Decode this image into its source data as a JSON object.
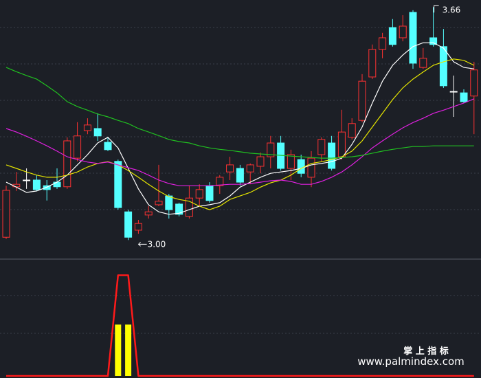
{
  "chart_data": [
    {
      "type": "candlestick",
      "categories": [
        null,
        null,
        null,
        null,
        null,
        null,
        null,
        null,
        null,
        null,
        null,
        null,
        null,
        null,
        null,
        null,
        null,
        null,
        null,
        null,
        null,
        null,
        null,
        null,
        null,
        null,
        null,
        null,
        null,
        null,
        null,
        null,
        null,
        null,
        null,
        null,
        null,
        null,
        null,
        null,
        null,
        null,
        null,
        null,
        null,
        null,
        null
      ],
      "open": [
        3.008,
        3.151,
        3.17,
        3.17,
        3.154,
        3.164,
        3.151,
        3.232,
        3.31,
        3.316,
        3.277,
        3.223,
        3.08,
        3.028,
        3.071,
        3.1,
        3.125,
        3.102,
        3.067,
        3.119,
        3.154,
        3.154,
        3.193,
        3.203,
        3.193,
        3.209,
        3.236,
        3.275,
        3.203,
        3.228,
        3.178,
        3.242,
        3.275,
        3.236,
        3.291,
        3.339,
        3.462,
        3.54,
        3.602,
        3.573,
        3.645,
        3.489,
        3.573,
        3.548,
        3.421,
        3.417,
        3.408
      ],
      "high": [
        3.154,
        3.193,
        3.203,
        3.184,
        3.17,
        3.203,
        3.291,
        3.334,
        3.345,
        3.359,
        3.291,
        3.228,
        3.086,
        3.057,
        3.096,
        3.213,
        3.131,
        3.106,
        3.154,
        3.158,
        3.164,
        3.184,
        3.236,
        3.213,
        3.217,
        3.248,
        3.295,
        3.295,
        3.256,
        3.242,
        3.252,
        3.291,
        3.295,
        3.369,
        3.345,
        3.47,
        3.554,
        3.587,
        3.626,
        3.637,
        3.651,
        3.544,
        3.66,
        3.598,
        3.466,
        3.427,
        3.505
      ],
      "low": [
        3.003,
        3.139,
        3.145,
        3.139,
        3.112,
        3.145,
        3.145,
        3.223,
        3.3,
        3.281,
        3.252,
        3.086,
        3.0,
        3.018,
        3.061,
        3.096,
        3.061,
        3.067,
        3.061,
        3.096,
        3.106,
        3.131,
        3.17,
        3.154,
        3.158,
        3.189,
        3.203,
        3.197,
        3.17,
        3.178,
        3.15,
        3.223,
        3.197,
        3.228,
        3.285,
        3.334,
        3.456,
        3.515,
        3.548,
        3.563,
        3.485,
        3.485,
        3.548,
        3.431,
        3.349,
        3.388,
        3.3
      ],
      "close": [
        3.141,
        3.158,
        3.17,
        3.143,
        3.143,
        3.151,
        3.281,
        3.295,
        3.326,
        3.295,
        3.256,
        3.092,
        3.008,
        3.047,
        3.08,
        3.11,
        3.086,
        3.073,
        3.119,
        3.143,
        3.112,
        3.178,
        3.213,
        3.164,
        3.213,
        3.236,
        3.275,
        3.203,
        3.242,
        3.189,
        3.232,
        3.285,
        3.203,
        3.306,
        3.33,
        3.45,
        3.54,
        3.573,
        3.554,
        3.606,
        3.501,
        3.515,
        3.554,
        3.437,
        3.421,
        3.392,
        3.482
      ],
      "up_color": "#ff3232",
      "down_color": "#54ffff",
      "doji_color": "#ffffff",
      "series": [
        {
          "color": "#ffffff",
          "values": [
            3.164,
            3.15,
            3.135,
            3.139,
            3.15,
            3.164,
            3.184,
            3.213,
            3.242,
            3.275,
            3.291,
            3.261,
            3.203,
            3.145,
            3.1,
            3.08,
            3.073,
            3.076,
            3.086,
            3.096,
            3.1,
            3.106,
            3.125,
            3.15,
            3.164,
            3.178,
            3.189,
            3.193,
            3.197,
            3.203,
            3.213,
            3.217,
            3.222,
            3.232,
            3.271,
            3.32,
            3.388,
            3.45,
            3.495,
            3.524,
            3.548,
            3.559,
            3.559,
            3.544,
            3.505,
            3.489,
            3.485
          ]
        },
        {
          "color": "#e6e600",
          "values": [
            3.213,
            3.203,
            3.193,
            3.184,
            3.178,
            3.178,
            3.184,
            3.193,
            3.207,
            3.217,
            3.222,
            3.213,
            3.197,
            3.178,
            3.158,
            3.139,
            3.123,
            3.115,
            3.11,
            3.096,
            3.086,
            3.096,
            3.115,
            3.125,
            3.135,
            3.15,
            3.162,
            3.17,
            3.184,
            3.203,
            3.217,
            3.222,
            3.228,
            3.236,
            3.252,
            3.281,
            3.32,
            3.359,
            3.398,
            3.431,
            3.456,
            3.476,
            3.495,
            3.505,
            3.513,
            3.509,
            3.495
          ]
        },
        {
          "color": "#e020e0",
          "values": [
            3.316,
            3.306,
            3.294,
            3.281,
            3.267,
            3.252,
            3.236,
            3.228,
            3.221,
            3.217,
            3.221,
            3.213,
            3.205,
            3.197,
            3.184,
            3.17,
            3.16,
            3.154,
            3.154,
            3.154,
            3.154,
            3.156,
            3.158,
            3.158,
            3.16,
            3.164,
            3.168,
            3.17,
            3.166,
            3.158,
            3.158,
            3.166,
            3.178,
            3.193,
            3.213,
            3.236,
            3.261,
            3.281,
            3.3,
            3.318,
            3.333,
            3.345,
            3.359,
            3.368,
            3.378,
            3.388,
            3.4
          ]
        },
        {
          "color": "#20c020",
          "values": [
            3.489,
            3.477,
            3.466,
            3.456,
            3.437,
            3.417,
            3.392,
            3.378,
            3.368,
            3.357,
            3.349,
            3.339,
            3.33,
            3.316,
            3.306,
            3.296,
            3.285,
            3.279,
            3.275,
            3.267,
            3.261,
            3.257,
            3.254,
            3.25,
            3.246,
            3.244,
            3.242,
            3.24,
            3.238,
            3.236,
            3.234,
            3.232,
            3.232,
            3.234,
            3.236,
            3.24,
            3.246,
            3.252,
            3.257,
            3.261,
            3.265,
            3.265,
            3.267,
            3.267,
            3.267,
            3.267,
            3.267
          ]
        }
      ],
      "ylim": [
        2.95,
        3.68
      ],
      "annotations": [
        {
          "label": "3.66",
          "value": 3.66
        },
        {
          "label": "3.00",
          "value": 3.0
        }
      ]
    },
    {
      "type": "line",
      "categories": [
        null,
        null,
        null,
        null,
        null,
        null,
        null,
        null,
        null,
        null,
        null,
        null,
        null,
        null,
        null,
        null,
        null,
        null,
        null,
        null,
        null,
        null,
        null,
        null,
        null,
        null,
        null,
        null,
        null,
        null,
        null,
        null,
        null,
        null,
        null,
        null,
        null,
        null,
        null,
        null,
        null,
        null,
        null,
        null,
        null,
        null,
        null
      ],
      "series": [
        {
          "type": "bar",
          "color": "#ffff00",
          "values": [
            0,
            0,
            0,
            0,
            0,
            0,
            0,
            0,
            0,
            0,
            0,
            0.51,
            0.51,
            0,
            0,
            0,
            0,
            0,
            0,
            0,
            0,
            0,
            0,
            0,
            0,
            0,
            0,
            0,
            0,
            0,
            0,
            0,
            0,
            0,
            0,
            0,
            0,
            0,
            0,
            0,
            0,
            0,
            0,
            0,
            0,
            0,
            0
          ]
        },
        {
          "type": "line",
          "color": "#ff1a1a",
          "values": [
            0,
            0,
            0,
            0,
            0,
            0,
            0,
            0,
            0,
            0,
            0,
            1,
            1,
            0,
            0,
            0,
            0,
            0,
            0,
            0,
            0,
            0,
            0,
            0,
            0,
            0,
            0,
            0,
            0,
            0,
            0,
            0,
            0,
            0,
            0,
            0,
            0,
            0,
            0,
            0,
            0,
            0,
            0,
            0,
            0,
            0,
            0
          ]
        }
      ],
      "ylim": [
        0,
        1.14
      ]
    }
  ],
  "watermark": {
    "title": "掌 上 指 标",
    "url": "www.palmindex.com"
  }
}
